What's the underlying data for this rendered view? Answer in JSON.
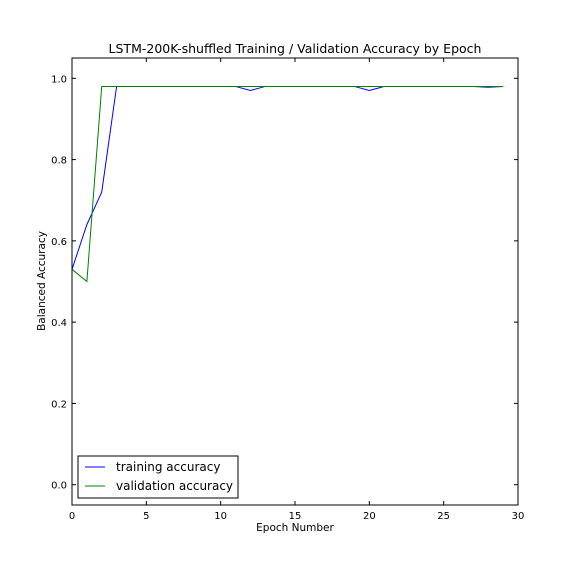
{
  "chart_data": {
    "type": "line",
    "title": "LSTM-200K-shuffled Training / Validation Accuracy by Epoch",
    "xlabel": "Epoch Number",
    "ylabel": "Balanced Accuracy",
    "xlim": [
      0,
      30
    ],
    "ylim": [
      -0.05,
      1.05
    ],
    "xticks": [
      0,
      5,
      10,
      15,
      20,
      25,
      30
    ],
    "xtick_labels": [
      "0",
      "5",
      "10",
      "15",
      "20",
      "25",
      "30"
    ],
    "yticks": [
      0.0,
      0.2,
      0.4,
      0.6,
      0.8,
      1.0
    ],
    "ytick_labels": [
      "0.0",
      "0.2",
      "0.4",
      "0.6",
      "0.8",
      "1.0"
    ],
    "grid": false,
    "legend_position": "lower-left",
    "x": [
      0,
      1,
      2,
      3,
      4,
      5,
      6,
      7,
      8,
      9,
      10,
      11,
      12,
      13,
      14,
      15,
      16,
      17,
      18,
      19,
      20,
      21,
      22,
      23,
      24,
      25,
      26,
      27,
      28,
      29
    ],
    "series": [
      {
        "name": "training accuracy",
        "color": "#0000ff",
        "values": [
          0.53,
          0.64,
          0.72,
          0.98,
          0.98,
          0.98,
          0.98,
          0.98,
          0.98,
          0.98,
          0.98,
          0.98,
          0.97,
          0.98,
          0.98,
          0.98,
          0.98,
          0.98,
          0.98,
          0.98,
          0.97,
          0.98,
          0.98,
          0.98,
          0.98,
          0.98,
          0.98,
          0.98,
          0.978,
          0.98
        ]
      },
      {
        "name": "validation accuracy",
        "color": "#008000",
        "values": [
          0.53,
          0.5,
          0.98,
          0.98,
          0.98,
          0.98,
          0.98,
          0.98,
          0.98,
          0.98,
          0.98,
          0.98,
          0.98,
          0.98,
          0.98,
          0.98,
          0.98,
          0.98,
          0.98,
          0.98,
          0.98,
          0.98,
          0.98,
          0.98,
          0.98,
          0.98,
          0.98,
          0.98,
          0.98,
          0.98
        ]
      }
    ]
  }
}
